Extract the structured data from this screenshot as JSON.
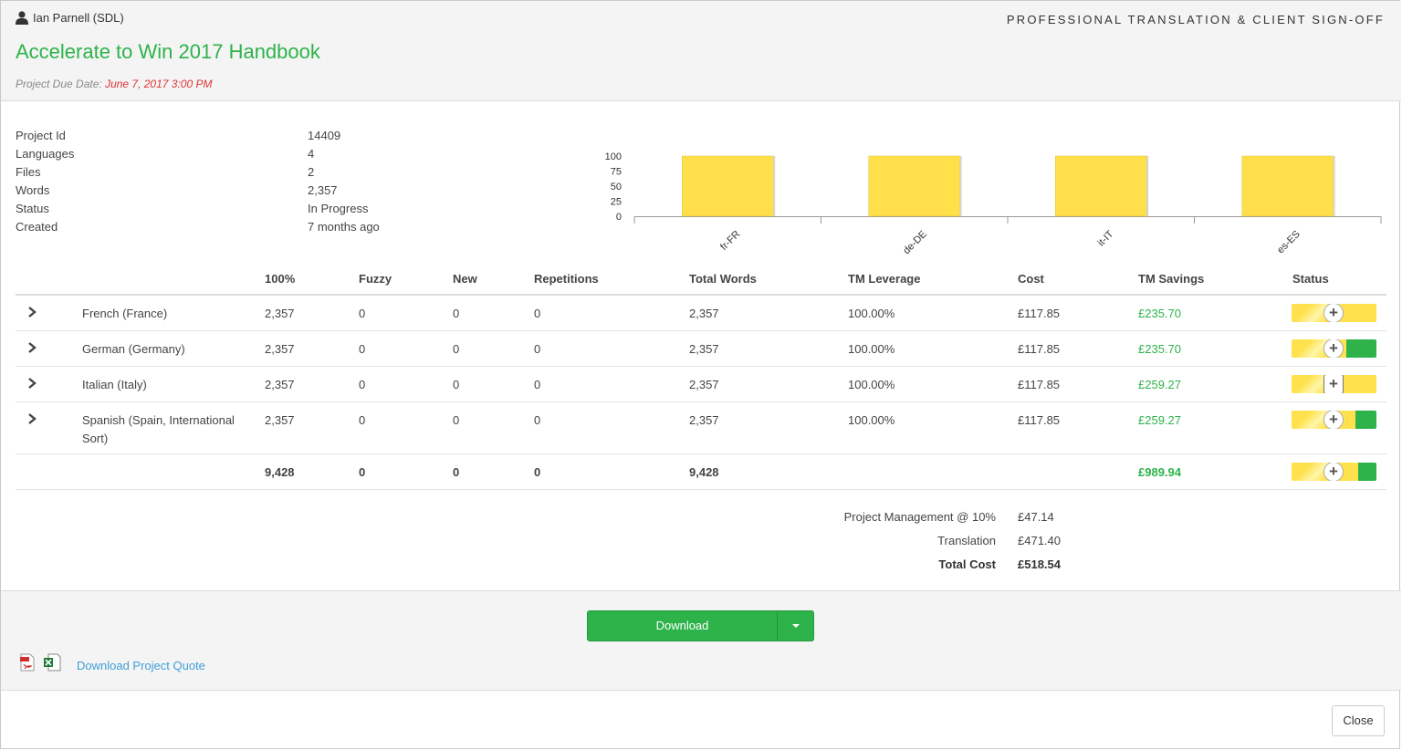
{
  "header": {
    "user": "Ian Parnell (SDL)",
    "brand": "PROFESSIONAL TRANSLATION & CLIENT SIGN-OFF",
    "title": "Accelerate to Win 2017 Handbook",
    "due_label": "Project Due Date:",
    "due_date": "June 7, 2017 3:00 PM"
  },
  "info": [
    {
      "key": "Project Id",
      "value": "14409"
    },
    {
      "key": "Languages",
      "value": "4"
    },
    {
      "key": "Files",
      "value": "2"
    },
    {
      "key": "Words",
      "value": "2,357"
    },
    {
      "key": "Status",
      "value": "In Progress"
    },
    {
      "key": "Created",
      "value": "7 months ago"
    }
  ],
  "chart_data": {
    "type": "bar",
    "categories": [
      "fr-FR",
      "de-DE",
      "it-IT",
      "es-ES"
    ],
    "values": [
      100,
      100,
      100,
      100
    ],
    "yticks": [
      0,
      25,
      50,
      75,
      100
    ],
    "ylim": [
      0,
      100
    ],
    "color": "#ffdf4a",
    "title": "",
    "xlabel": "",
    "ylabel": ""
  },
  "table": {
    "headers": [
      "100%",
      "Fuzzy",
      "New",
      "Repetitions",
      "Total Words",
      "TM Leverage",
      "Cost",
      "TM Savings",
      "Status"
    ],
    "rows": [
      {
        "lang": "French (France)",
        "lang2": "",
        "p100": "2,357",
        "fuzzy": "0",
        "new": "0",
        "rep": "0",
        "total": "2,357",
        "lev": "100.00%",
        "cost": "£117.85",
        "savings": "£235.70",
        "status_green": 0
      },
      {
        "lang": "German (Germany)",
        "lang2": "",
        "p100": "2,357",
        "fuzzy": "0",
        "new": "0",
        "rep": "0",
        "total": "2,357",
        "lev": "100.00%",
        "cost": "£117.85",
        "savings": "£235.70",
        "status_green": 0.35
      },
      {
        "lang": "Italian (Italy)",
        "lang2": "",
        "p100": "2,357",
        "fuzzy": "0",
        "new": "0",
        "rep": "0",
        "total": "2,357",
        "lev": "100.00%",
        "cost": "£117.85",
        "savings": "£259.27",
        "status_green": 0
      },
      {
        "lang": "Spanish (Spain, International",
        "lang2": "Sort)",
        "p100": "2,357",
        "fuzzy": "0",
        "new": "0",
        "rep": "0",
        "total": "2,357",
        "lev": "100.00%",
        "cost": "£117.85",
        "savings": "£259.27",
        "status_green": 0.25
      }
    ],
    "totals": {
      "p100": "9,428",
      "fuzzy": "0",
      "new": "0",
      "rep": "0",
      "total": "9,428",
      "savings": "£989.94",
      "status_green": 0.22
    }
  },
  "summary": {
    "pm_label": "Project Management @ 10%",
    "pm_value": "£47.14",
    "tr_label": "Translation",
    "tr_value": "£471.40",
    "total_label": "Total Cost",
    "total_value": "£518.54"
  },
  "footer": {
    "download_label": "Download",
    "quote_link": "Download Project Quote",
    "close_label": "Close"
  },
  "colors": {
    "accent": "#2db34a",
    "due": "#dd3333",
    "link": "#3f9fd6",
    "bar": "#ffdf4a"
  }
}
